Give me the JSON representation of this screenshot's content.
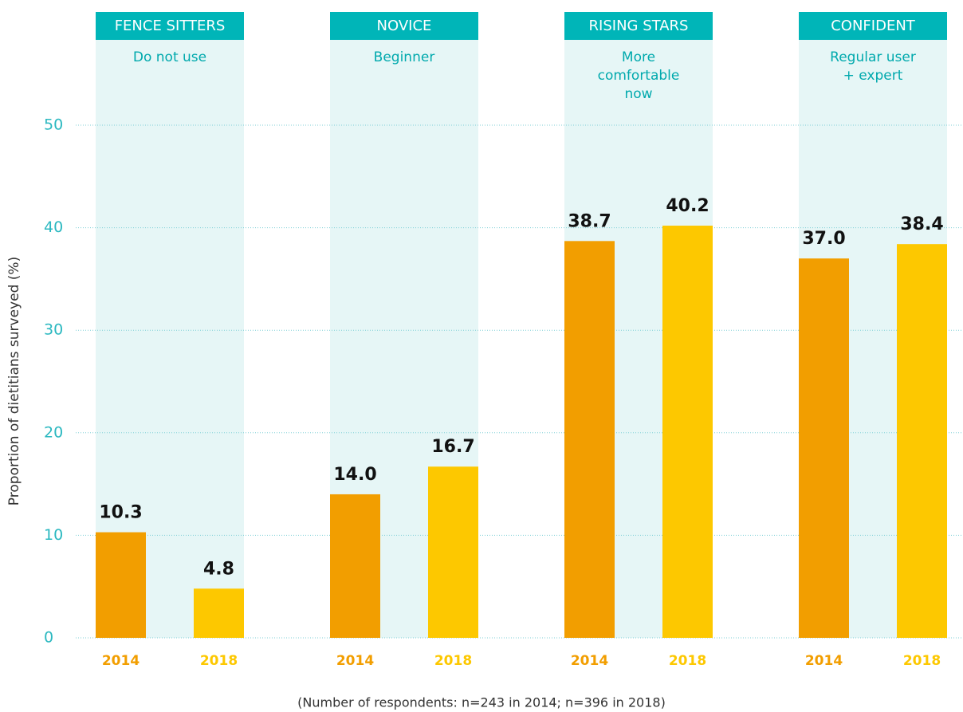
{
  "chart_data": {
    "type": "bar",
    "y_label": "Proportion of dietitians surveyed (%)",
    "footnote": "(Number of respondents: n=243 in 2014; n=396 in 2018)",
    "categories": [
      "FENCE SITTERS",
      "NOVICE",
      "RISING STARS",
      "CONFIDENT"
    ],
    "subtitles": [
      [
        "Do not use"
      ],
      [
        "Beginner"
      ],
      [
        "More",
        "comfortable",
        "now"
      ],
      [
        "Regular user",
        "+ expert"
      ]
    ],
    "series": [
      {
        "name": "2014",
        "color": "#f29e00",
        "values": [
          10.3,
          14,
          38.7,
          37
        ],
        "value_labels": [
          "10.3",
          "14.0",
          "38.7",
          "37.0"
        ]
      },
      {
        "name": "2018",
        "color": "#fdc800",
        "values": [
          4.8,
          16.7,
          40.2,
          38.4
        ],
        "value_labels": [
          "4.8",
          "16.7",
          "40.2",
          "38.4"
        ]
      }
    ],
    "ylim": [
      0,
      50
    ],
    "yticks": [
      0,
      10,
      20,
      30,
      40,
      50
    ],
    "grid": true
  }
}
